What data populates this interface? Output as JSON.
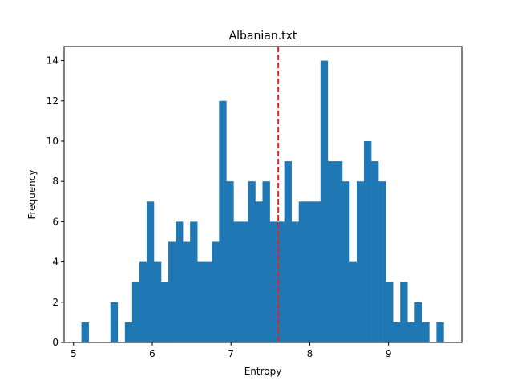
{
  "chart_data": {
    "type": "bar",
    "title": "Albanian.txt",
    "xlabel": "Entropy",
    "ylabel": "Frequency",
    "xlim": [
      4.88,
      9.93
    ],
    "ylim": [
      0,
      14.7
    ],
    "xticks": [
      5,
      6,
      7,
      8,
      9
    ],
    "yticks": [
      0,
      2,
      4,
      6,
      8,
      10,
      12,
      14
    ],
    "bar_color": "#1f77b4",
    "mean_line": {
      "x": 7.6,
      "color": "#d62728",
      "style": "dashed"
    },
    "bins": {
      "start": 5.1,
      "width": 0.092,
      "counts": [
        1,
        0,
        0,
        0,
        2,
        0,
        1,
        3,
        4,
        7,
        4,
        3,
        5,
        6,
        5,
        6,
        4,
        4,
        5,
        12,
        8,
        6,
        6,
        8,
        7,
        8,
        6,
        6,
        9,
        6,
        7,
        7,
        7,
        14,
        9,
        9,
        8,
        4,
        8,
        10,
        9,
        8,
        3,
        1,
        3,
        1,
        2,
        1,
        0,
        1
      ]
    },
    "grid": false
  }
}
